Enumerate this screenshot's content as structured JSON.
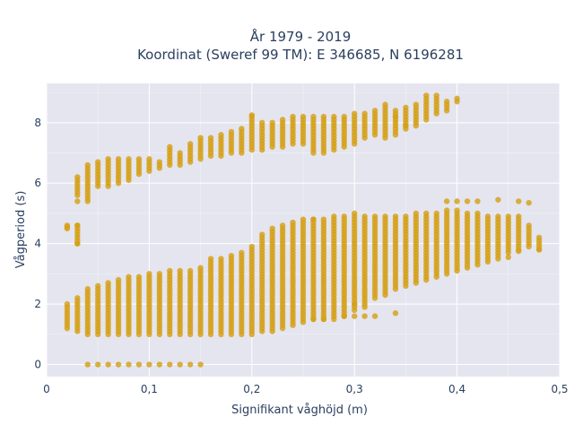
{
  "chart_data": {
    "type": "scatter",
    "title_line1": "År 1979 - 2019",
    "title_line2": "Koordinat (Sweref 99 TM): E 346685, N 6196281",
    "xlabel": "Signifikant våghöjd (m)",
    "ylabel": "Vågperiod (s)",
    "xlim": [
      0,
      0.5
    ],
    "ylim": [
      -0.4,
      9.3
    ],
    "xticks": [
      0,
      0.1,
      0.2,
      0.3,
      0.4,
      0.5
    ],
    "xtick_labels": [
      "0",
      "0,1",
      "0,2",
      "0,3",
      "0,4",
      "0,5"
    ],
    "yticks": [
      0,
      2,
      4,
      6,
      8
    ],
    "ytick_labels": [
      "0",
      "2",
      "4",
      "6",
      "8"
    ],
    "grid": true,
    "legend": "none",
    "marker_color": "#d4a017",
    "background_color": "#e5e5ef",
    "columns": [
      {
        "x": 0.02,
        "ranges": [
          [
            1.2,
            2.0
          ],
          [
            4.5,
            4.6
          ]
        ]
      },
      {
        "x": 0.03,
        "ranges": [
          [
            1.1,
            2.2
          ],
          [
            4.0,
            4.6
          ],
          [
            5.6,
            6.2
          ]
        ]
      },
      {
        "x": 0.04,
        "ranges": [
          [
            1.0,
            2.5
          ],
          [
            5.5,
            6.6
          ]
        ],
        "zero": true
      },
      {
        "x": 0.05,
        "ranges": [
          [
            1.0,
            2.6
          ],
          [
            5.9,
            6.7
          ]
        ],
        "zero": true
      },
      {
        "x": 0.06,
        "ranges": [
          [
            1.0,
            2.7
          ],
          [
            5.9,
            6.8
          ]
        ],
        "zero": true
      },
      {
        "x": 0.07,
        "ranges": [
          [
            1.0,
            2.8
          ],
          [
            6.0,
            6.8
          ]
        ],
        "zero": true
      },
      {
        "x": 0.08,
        "ranges": [
          [
            1.0,
            2.9
          ],
          [
            6.1,
            6.8
          ]
        ],
        "zero": true
      },
      {
        "x": 0.09,
        "ranges": [
          [
            1.0,
            2.9
          ],
          [
            6.3,
            6.8
          ]
        ],
        "zero": true
      },
      {
        "x": 0.1,
        "ranges": [
          [
            1.0,
            3.0
          ],
          [
            6.4,
            6.8
          ]
        ],
        "zero": true
      },
      {
        "x": 0.11,
        "ranges": [
          [
            1.0,
            3.0
          ],
          [
            6.5,
            6.7
          ]
        ],
        "zero": true
      },
      {
        "x": 0.12,
        "ranges": [
          [
            1.0,
            3.1
          ],
          [
            6.6,
            7.2
          ]
        ],
        "zero": true
      },
      {
        "x": 0.13,
        "ranges": [
          [
            1.0,
            3.1
          ],
          [
            6.6,
            7.0
          ]
        ],
        "zero": true
      },
      {
        "x": 0.14,
        "ranges": [
          [
            1.0,
            3.1
          ],
          [
            6.7,
            7.3
          ]
        ],
        "zero": true
      },
      {
        "x": 0.15,
        "ranges": [
          [
            1.0,
            3.2
          ],
          [
            6.8,
            7.5
          ]
        ],
        "zero": true
      },
      {
        "x": 0.16,
        "ranges": [
          [
            1.0,
            3.5
          ],
          [
            6.9,
            7.5
          ]
        ]
      },
      {
        "x": 0.17,
        "ranges": [
          [
            1.0,
            3.5
          ],
          [
            6.9,
            7.6
          ]
        ]
      },
      {
        "x": 0.18,
        "ranges": [
          [
            1.0,
            3.6
          ],
          [
            7.0,
            7.7
          ]
        ]
      },
      {
        "x": 0.19,
        "ranges": [
          [
            1.0,
            3.7
          ],
          [
            7.0,
            7.8
          ]
        ]
      },
      {
        "x": 0.2,
        "ranges": [
          [
            1.0,
            3.9
          ],
          [
            7.1,
            8.2
          ]
        ]
      },
      {
        "x": 0.21,
        "ranges": [
          [
            1.1,
            4.3
          ],
          [
            7.1,
            8.0
          ]
        ]
      },
      {
        "x": 0.22,
        "ranges": [
          [
            1.1,
            4.5
          ],
          [
            7.2,
            8.0
          ]
        ]
      },
      {
        "x": 0.23,
        "ranges": [
          [
            1.2,
            4.6
          ],
          [
            7.2,
            8.1
          ]
        ]
      },
      {
        "x": 0.24,
        "ranges": [
          [
            1.3,
            4.7
          ],
          [
            7.3,
            8.2
          ]
        ]
      },
      {
        "x": 0.25,
        "ranges": [
          [
            1.4,
            4.8
          ],
          [
            7.3,
            8.2
          ]
        ]
      },
      {
        "x": 0.26,
        "ranges": [
          [
            1.5,
            4.8
          ],
          [
            7.0,
            8.2
          ]
        ]
      },
      {
        "x": 0.27,
        "ranges": [
          [
            1.5,
            4.8
          ],
          [
            7.0,
            8.2
          ]
        ]
      },
      {
        "x": 0.28,
        "ranges": [
          [
            1.6,
            4.9
          ],
          [
            7.1,
            8.2
          ]
        ]
      },
      {
        "x": 0.29,
        "ranges": [
          [
            1.6,
            4.9
          ],
          [
            7.2,
            8.2
          ]
        ]
      },
      {
        "x": 0.3,
        "ranges": [
          [
            1.8,
            5.0
          ],
          [
            7.3,
            8.3
          ]
        ]
      },
      {
        "x": 0.31,
        "ranges": [
          [
            2.0,
            4.9
          ],
          [
            7.5,
            8.3
          ]
        ]
      },
      {
        "x": 0.32,
        "ranges": [
          [
            2.2,
            4.9
          ],
          [
            7.6,
            8.4
          ]
        ]
      },
      {
        "x": 0.33,
        "ranges": [
          [
            2.3,
            4.9
          ],
          [
            7.5,
            8.6
          ]
        ]
      },
      {
        "x": 0.34,
        "ranges": [
          [
            2.5,
            4.9
          ],
          [
            7.6,
            8.4
          ]
        ]
      },
      {
        "x": 0.35,
        "ranges": [
          [
            2.6,
            4.9
          ],
          [
            7.8,
            8.5
          ]
        ]
      },
      {
        "x": 0.36,
        "ranges": [
          [
            2.7,
            5.0
          ],
          [
            7.9,
            8.6
          ]
        ]
      },
      {
        "x": 0.37,
        "ranges": [
          [
            2.8,
            5.0
          ],
          [
            8.1,
            8.9
          ]
        ]
      },
      {
        "x": 0.38,
        "ranges": [
          [
            2.9,
            5.0
          ],
          [
            8.3,
            8.9
          ]
        ]
      },
      {
        "x": 0.39,
        "ranges": [
          [
            3.0,
            5.1
          ],
          [
            8.5,
            8.7
          ]
        ]
      },
      {
        "x": 0.4,
        "ranges": [
          [
            3.1,
            5.1
          ],
          [
            8.7,
            8.8
          ]
        ]
      },
      {
        "x": 0.41,
        "ranges": [
          [
            3.2,
            5.0
          ]
        ]
      },
      {
        "x": 0.42,
        "ranges": [
          [
            3.3,
            5.0
          ]
        ]
      },
      {
        "x": 0.43,
        "ranges": [
          [
            3.4,
            4.9
          ]
        ]
      },
      {
        "x": 0.44,
        "ranges": [
          [
            3.5,
            4.9
          ]
        ]
      },
      {
        "x": 0.45,
        "ranges": [
          [
            3.7,
            4.9
          ]
        ]
      },
      {
        "x": 0.46,
        "ranges": [
          [
            3.8,
            4.8
          ]
        ]
      },
      {
        "x": 0.47,
        "ranges": [
          [
            3.9,
            4.6
          ]
        ]
      },
      {
        "x": 0.48,
        "ranges": [
          [
            3.8,
            4.2
          ]
        ]
      }
    ],
    "outliers": [
      {
        "x": 0.02,
        "y": 4.55
      },
      {
        "x": 0.03,
        "y": 4.6
      },
      {
        "x": 0.03,
        "y": 4.0
      },
      {
        "x": 0.04,
        "y": 5.4
      },
      {
        "x": 0.03,
        "y": 5.4
      },
      {
        "x": 0.2,
        "y": 8.25
      },
      {
        "x": 0.26,
        "y": 4.8
      },
      {
        "x": 0.26,
        "y": 1.5
      },
      {
        "x": 0.27,
        "y": 1.5
      },
      {
        "x": 0.28,
        "y": 1.5
      },
      {
        "x": 0.29,
        "y": 1.6
      },
      {
        "x": 0.3,
        "y": 1.6
      },
      {
        "x": 0.31,
        "y": 1.6
      },
      {
        "x": 0.32,
        "y": 1.6
      },
      {
        "x": 0.34,
        "y": 1.7
      },
      {
        "x": 0.3,
        "y": 2.0
      },
      {
        "x": 0.31,
        "y": 1.9
      },
      {
        "x": 0.34,
        "y": 8.2
      },
      {
        "x": 0.35,
        "y": 7.9
      },
      {
        "x": 0.39,
        "y": 8.4
      },
      {
        "x": 0.39,
        "y": 5.4
      },
      {
        "x": 0.4,
        "y": 5.4
      },
      {
        "x": 0.41,
        "y": 5.4
      },
      {
        "x": 0.42,
        "y": 5.4
      },
      {
        "x": 0.44,
        "y": 5.45
      },
      {
        "x": 0.46,
        "y": 5.4
      },
      {
        "x": 0.47,
        "y": 5.35
      },
      {
        "x": 0.46,
        "y": 3.75
      },
      {
        "x": 0.45,
        "y": 3.55
      },
      {
        "x": 0.48,
        "y": 3.8
      },
      {
        "x": 0.46,
        "y": 4.9
      }
    ]
  }
}
